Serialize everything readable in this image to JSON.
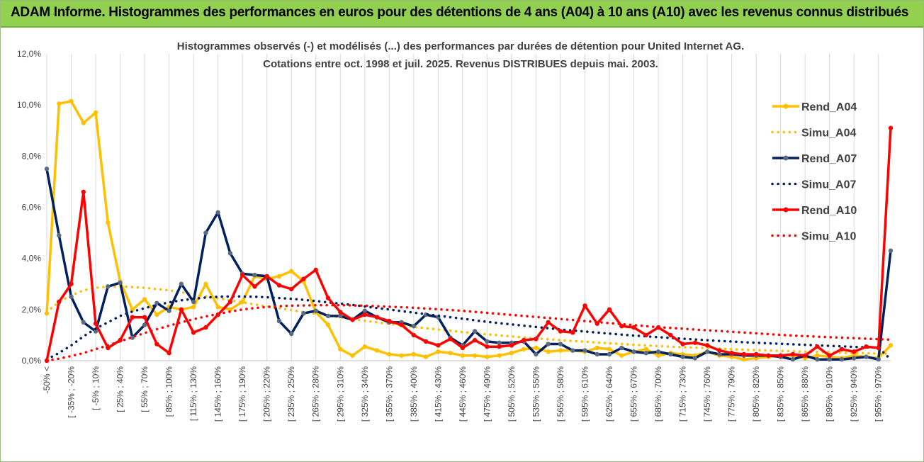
{
  "header": {
    "title": "ADAM Informe. Histogrammes des performances en euros pour des détentions de 4 ans (A04) à 10 ans (A10) avec les revenus connus distribués"
  },
  "chart_data": {
    "type": "line",
    "title": "Histogrammes observés (-) et modélisés (...)  des performances par durées de détention pour United Internet AG.",
    "subtitle": "Cotations entre oct. 1998 et juil. 2025. Revenus DISTRIBUES depuis mai. 2003.",
    "ylim": [
      0,
      12
    ],
    "yticks": [
      "0,0%",
      "2,0%",
      "4,0%",
      "6,0%",
      "8,0%",
      "10,0%",
      "12,0%"
    ],
    "x_count": 70,
    "xtick_labels": [
      "-50% <",
      "[ -35% ; -20%",
      "[ -5% ; 10%",
      "[ 25% ; 40%",
      "[ 55% ; 70%",
      "[ 85% ; 100%",
      "[ 115% ; 130%",
      "[ 145% ; 160%",
      "[ 175% ; 190%",
      "[ 205% ; 220%",
      "[ 235% ; 250%",
      "[ 265% ; 280%",
      "[ 295% ; 310%",
      "[ 325% ; 340%",
      "[ 355% ; 370%",
      "[ 385% ; 400%",
      "[ 415% ; 430%",
      "[ 445% ; 460%",
      "[ 475% ; 490%",
      "[ 505% ; 520%",
      "[ 535% ; 550%",
      "[ 565% ; 580%",
      "[ 595% ; 610%",
      "[ 625% ; 640%",
      "[ 655% ; 670%",
      "[ 685% ; 700%",
      "[ 715% ; 730%",
      "[ 745% ; 760%",
      "[ 775% ; 790%",
      "[ 805% ; 820%",
      "[ 835% ; 850%",
      "[ 865% ; 880%",
      "[ 895% ; 910%",
      "[ 925% ; 940%",
      "[ 955% ; 970%"
    ],
    "legend_position": "right",
    "series": [
      {
        "name": "Rend_A04",
        "color": "#ffc000",
        "style": "solid",
        "values": [
          1.85,
          10.05,
          10.15,
          9.3,
          9.7,
          5.4,
          3.1,
          2.0,
          2.4,
          1.8,
          2.1,
          2.0,
          2.1,
          3.0,
          2.1,
          2.0,
          2.3,
          3.3,
          3.2,
          3.3,
          3.5,
          3.1,
          1.9,
          1.4,
          0.45,
          0.2,
          0.55,
          0.4,
          0.25,
          0.2,
          0.25,
          0.15,
          0.35,
          0.3,
          0.2,
          0.2,
          0.15,
          0.2,
          0.3,
          0.45,
          0.5,
          0.35,
          0.4,
          0.4,
          0.35,
          0.5,
          0.45,
          0.2,
          0.35,
          0.45,
          0.2,
          0.3,
          0.25,
          0.2,
          0.35,
          0.2,
          0.15,
          0.05,
          0.1,
          0.15,
          0.2,
          0.2,
          0.1,
          0.2,
          0.15,
          0.1,
          0.2,
          0.15,
          0.1,
          0.6
        ]
      },
      {
        "name": "Simu_A04",
        "color": "#ffc000",
        "style": "dotted",
        "values": [
          1.9,
          2.3,
          2.55,
          2.75,
          2.85,
          2.9,
          2.9,
          2.88,
          2.85,
          2.8,
          2.75,
          2.68,
          2.6,
          2.52,
          2.44,
          2.36,
          2.28,
          2.2,
          2.12,
          2.05,
          1.98,
          1.9,
          1.83,
          1.76,
          1.69,
          1.62,
          1.56,
          1.5,
          1.44,
          1.38,
          1.32,
          1.27,
          1.22,
          1.17,
          1.12,
          1.07,
          1.03,
          0.99,
          0.95,
          0.91,
          0.87,
          0.84,
          0.8,
          0.77,
          0.74,
          0.71,
          0.68,
          0.65,
          0.62,
          0.6,
          0.57,
          0.55,
          0.53,
          0.51,
          0.49,
          0.47,
          0.45,
          0.43,
          0.41,
          0.4,
          0.38,
          0.37,
          0.35,
          0.34,
          0.33,
          0.31,
          0.3,
          0.29,
          0.28,
          0.27
        ]
      },
      {
        "name": "Rend_A07",
        "color": "#002060",
        "style": "solid",
        "values": [
          7.5,
          4.9,
          2.5,
          1.5,
          1.15,
          2.9,
          3.05,
          0.9,
          1.4,
          2.25,
          1.95,
          3.0,
          2.3,
          5.0,
          5.8,
          4.2,
          3.4,
          3.35,
          3.3,
          1.55,
          1.05,
          1.85,
          1.95,
          1.75,
          1.75,
          1.6,
          1.95,
          1.7,
          1.5,
          1.5,
          1.35,
          1.8,
          1.7,
          0.9,
          0.6,
          1.15,
          0.75,
          0.7,
          0.7,
          0.75,
          0.25,
          0.65,
          0.65,
          0.4,
          0.4,
          0.25,
          0.25,
          0.5,
          0.35,
          0.3,
          0.35,
          0.25,
          0.15,
          0.1,
          0.35,
          0.25,
          0.25,
          0.2,
          0.2,
          0.2,
          0.15,
          0.05,
          0.2,
          0.05,
          0.05,
          0.05,
          0.1,
          0.15,
          0.05,
          4.3
        ]
      },
      {
        "name": "Simu_A07",
        "color": "#002060",
        "style": "dotted",
        "values": [
          0.05,
          0.3,
          0.6,
          0.95,
          1.25,
          1.5,
          1.75,
          1.92,
          2.05,
          2.18,
          2.28,
          2.36,
          2.42,
          2.47,
          2.5,
          2.51,
          2.51,
          2.5,
          2.48,
          2.45,
          2.42,
          2.38,
          2.33,
          2.28,
          2.23,
          2.18,
          2.12,
          2.06,
          2.0,
          1.94,
          1.88,
          1.82,
          1.76,
          1.7,
          1.64,
          1.58,
          1.52,
          1.47,
          1.42,
          1.37,
          1.32,
          1.27,
          1.22,
          1.18,
          1.14,
          1.1,
          1.06,
          1.02,
          0.98,
          0.95,
          0.92,
          0.89,
          0.86,
          0.83,
          0.8,
          0.77,
          0.75,
          0.72,
          0.7,
          0.68,
          0.66,
          0.64,
          0.62,
          0.6,
          0.58,
          0.56,
          0.54,
          0.52,
          0.51,
          0.05
        ]
      },
      {
        "name": "Rend_A10",
        "color": "#ff0000",
        "style": "solid",
        "values": [
          0.0,
          2.3,
          3.0,
          6.6,
          1.45,
          0.5,
          0.8,
          1.7,
          1.7,
          0.65,
          0.3,
          2.0,
          1.1,
          1.3,
          1.8,
          2.3,
          3.35,
          2.9,
          3.3,
          2.95,
          2.8,
          3.2,
          3.55,
          2.45,
          1.9,
          1.6,
          1.8,
          1.7,
          1.55,
          1.4,
          1.0,
          0.75,
          0.6,
          0.85,
          0.5,
          0.8,
          0.55,
          0.55,
          0.6,
          0.8,
          0.85,
          1.5,
          1.15,
          1.1,
          2.15,
          1.45,
          2.0,
          1.35,
          1.3,
          1.0,
          1.3,
          1.0,
          0.65,
          0.7,
          0.6,
          0.4,
          0.3,
          0.25,
          0.25,
          0.2,
          0.2,
          0.25,
          0.2,
          0.55,
          0.2,
          0.45,
          0.35,
          0.55,
          0.5,
          9.1
        ]
      },
      {
        "name": "Simu_A10",
        "color": "#ff0000",
        "style": "dotted",
        "values": [
          0.0,
          0.08,
          0.18,
          0.3,
          0.45,
          0.6,
          0.76,
          0.92,
          1.08,
          1.23,
          1.37,
          1.5,
          1.62,
          1.73,
          1.83,
          1.92,
          2.0,
          2.06,
          2.1,
          2.13,
          2.15,
          2.16,
          2.17,
          2.17,
          2.17,
          2.16,
          2.15,
          2.13,
          2.11,
          2.09,
          2.07,
          2.04,
          2.01,
          1.98,
          1.95,
          1.91,
          1.87,
          1.83,
          1.79,
          1.75,
          1.71,
          1.67,
          1.63,
          1.59,
          1.55,
          1.51,
          1.47,
          1.43,
          1.39,
          1.35,
          1.31,
          1.28,
          1.25,
          1.22,
          1.19,
          1.16,
          1.13,
          1.1,
          1.07,
          1.04,
          1.01,
          0.98,
          0.96,
          0.94,
          0.92,
          0.9,
          0.88,
          0.86,
          0.84,
          0.82
        ]
      }
    ]
  }
}
